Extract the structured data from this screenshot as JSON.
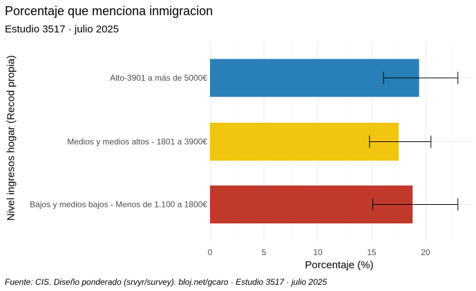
{
  "chart_data": {
    "type": "bar",
    "orientation": "horizontal",
    "title": "Porcentaje que menciona inmigracion",
    "subtitle": "Estudio 3517 · julio 2025",
    "xlabel": "Porcentaje (%)",
    "ylabel": "Nivel ingresos hogar (Recod propia)",
    "caption": "Fuente: CIS. Diseño ponderado (srvyr/survey). bloj.net/gcaro · Estudio 3517 · julio 2025",
    "xlim": [
      0,
      24.5
    ],
    "xticks": [
      0,
      5,
      10,
      15,
      20
    ],
    "grid": true,
    "legend": "none",
    "categories": [
      "Alto-3901 a más de 5000€",
      "Medios y medios altos - 1801 a 3900€",
      "Bajos y medios bajos - Menos de 1.100 a 1800€"
    ],
    "values": [
      19.4,
      17.5,
      18.8
    ],
    "error_low": [
      16.1,
      14.8,
      15.1
    ],
    "error_high": [
      23.0,
      20.5,
      23.0
    ],
    "colors": [
      "#2980b9",
      "#f1c40f",
      "#c0392b"
    ]
  }
}
